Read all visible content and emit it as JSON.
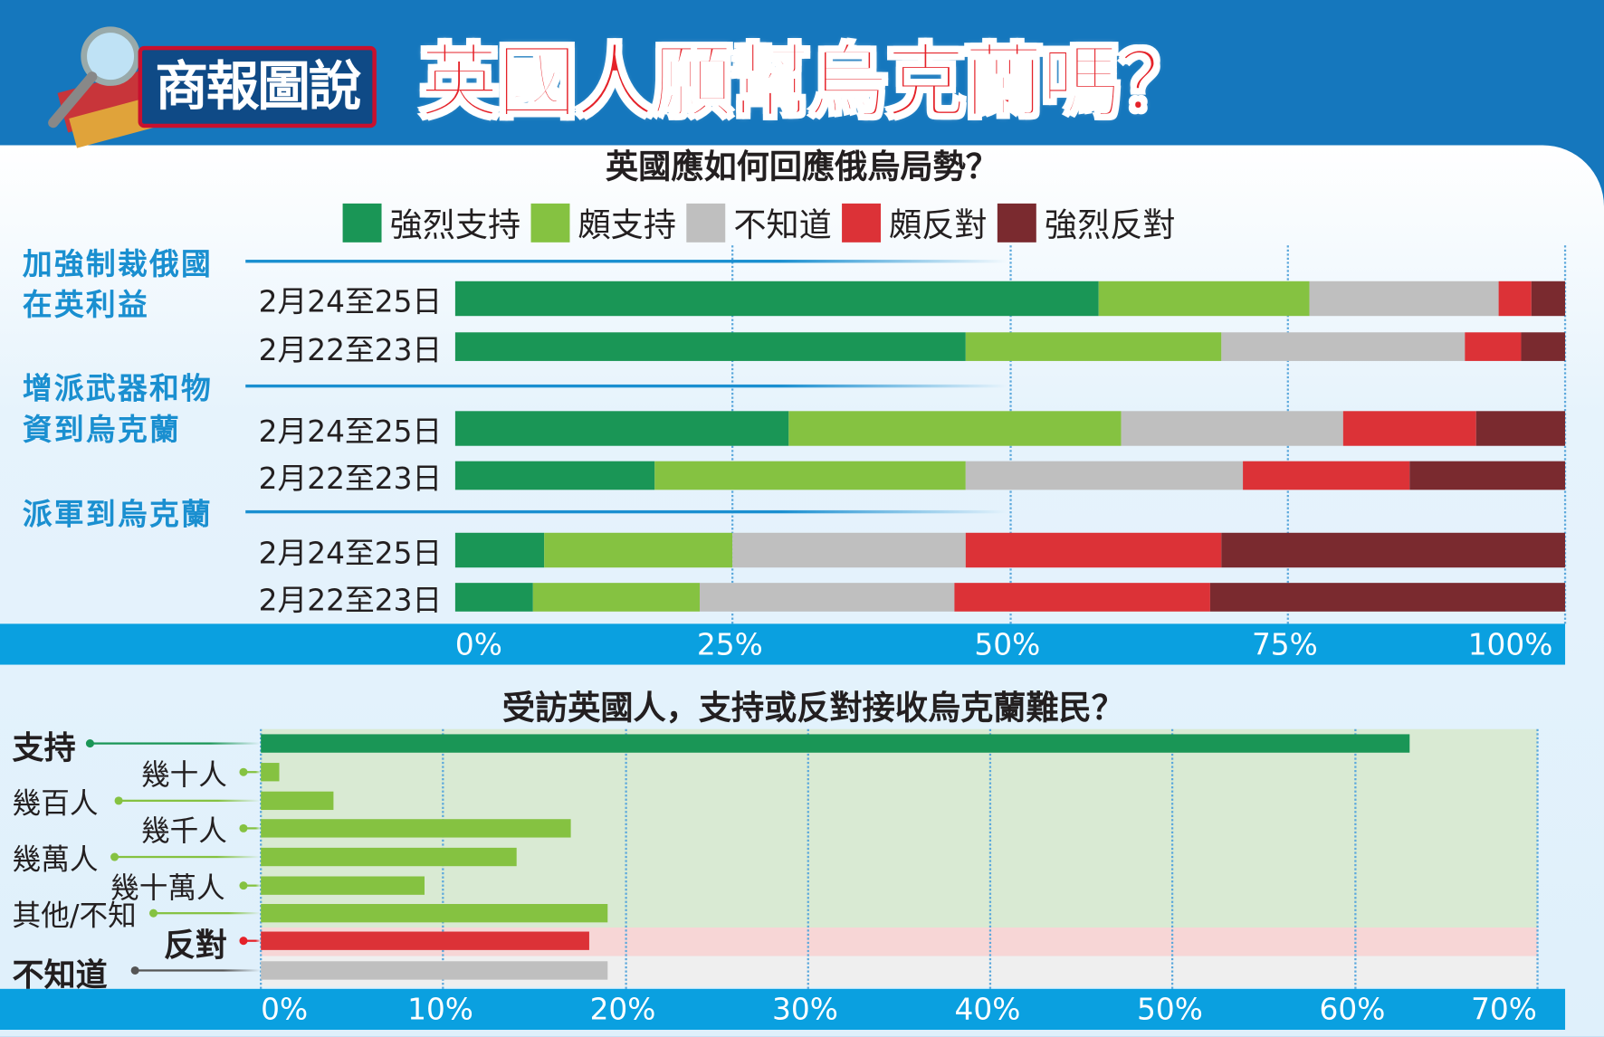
{
  "header": {
    "logo_text": "商報圖說",
    "title": "英國人願幫烏克蘭嗎？"
  },
  "colors": {
    "strong_support": "#1a9656",
    "support": "#85c241",
    "unknown": "#bfbfbf",
    "oppose": "#dc3237",
    "strong_oppose": "#7a2a2f"
  },
  "chart_data": [
    {
      "type": "bar",
      "stacked": true,
      "orientation": "horizontal",
      "title": "英國應如何回應俄烏局勢？",
      "legend": [
        "強烈支持",
        "頗支持",
        "不知道",
        "頗反對",
        "強烈反對"
      ],
      "legend_position": "top",
      "groups": [
        {
          "label": "加強制裁俄國在英利益",
          "label_lines": [
            "加強制裁俄國",
            "在英利益"
          ],
          "rows": [
            {
              "label": "2月24至25日",
              "values": [
                58,
                19,
                17,
                3,
                3
              ]
            },
            {
              "label": "2月22至23日",
              "values": [
                46,
                23,
                22,
                5,
                4
              ]
            }
          ]
        },
        {
          "label": "增派武器和物資到烏克蘭",
          "label_lines": [
            "增派武器和物",
            "資到烏克蘭"
          ],
          "rows": [
            {
              "label": "2月24至25日",
              "values": [
                30,
                30,
                20,
                12,
                8
              ]
            },
            {
              "label": "2月22至23日",
              "values": [
                18,
                28,
                25,
                15,
                14
              ]
            }
          ]
        },
        {
          "label": "派軍到烏克蘭",
          "label_lines": [
            "派軍到烏克蘭"
          ],
          "rows": [
            {
              "label": "2月24至25日",
              "values": [
                8,
                17,
                21,
                23,
                31
              ]
            },
            {
              "label": "2月22至23日",
              "values": [
                7,
                15,
                23,
                23,
                32
              ]
            }
          ]
        }
      ],
      "xlim": [
        0,
        100
      ],
      "xticks": [
        "0%",
        "25%",
        "50%",
        "75%",
        "100%"
      ],
      "grid": true
    },
    {
      "type": "bar",
      "orientation": "horizontal",
      "title": "受訪英國人，支持或反對接收烏克蘭難民？",
      "categories": [
        "支持",
        "幾十人",
        "幾百人",
        "幾千人",
        "幾萬人",
        "幾十萬人",
        "其他/不知",
        "反對",
        "不知道"
      ],
      "values": [
        63,
        1,
        4,
        17,
        14,
        9,
        19,
        18,
        19
      ],
      "xlim": [
        0,
        70
      ],
      "xticks": [
        "0%",
        "10%",
        "20%",
        "30%",
        "40%",
        "50%",
        "60%",
        "70%"
      ],
      "grid": true
    }
  ]
}
